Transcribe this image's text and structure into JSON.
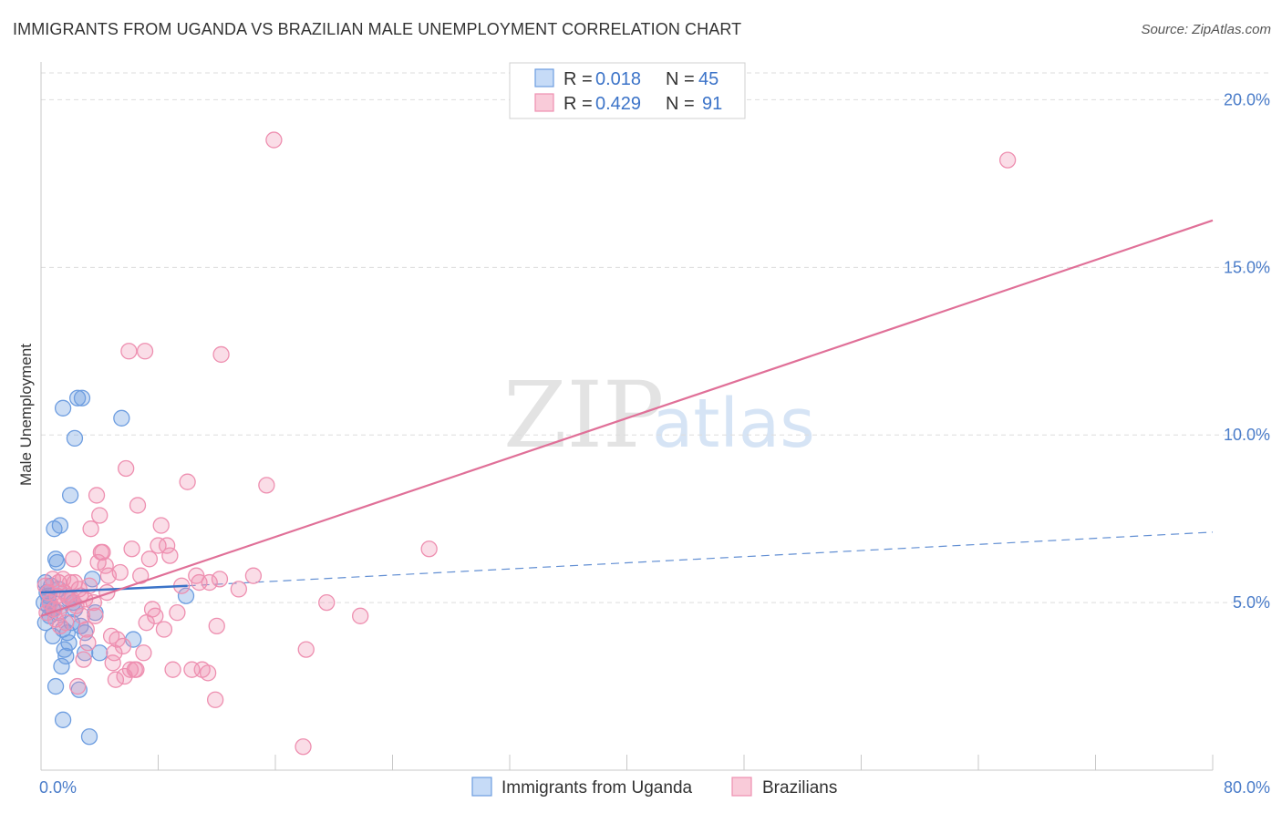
{
  "title": "IMMIGRANTS FROM UGANDA VS BRAZILIAN MALE UNEMPLOYMENT CORRELATION CHART",
  "source": "Source: ZipAtlas.com",
  "watermark": {
    "zip": "ZIP",
    "atlas": "atlas"
  },
  "colors": {
    "blue": "#6d9de0",
    "pink": "#ee8fb0",
    "blue_line": "#3b73c8",
    "pink_line": "#e07098"
  },
  "legend": {
    "r_label": "R =",
    "n_label": "N =",
    "rows": [
      {
        "r": "0.018",
        "n": "45"
      },
      {
        "r": "0.429",
        "n": "91"
      }
    ]
  },
  "chart_data": {
    "type": "scatter",
    "title": "IMMIGRANTS FROM UGANDA VS BRAZILIAN MALE UNEMPLOYMENT CORRELATION CHART",
    "xlabel": "",
    "ylabel": "Male Unemployment",
    "xlim": [
      0,
      80
    ],
    "ylim": [
      0,
      20.8
    ],
    "x_tick_labels": [
      "0.0%",
      "80.0%"
    ],
    "y_ticks": [
      5,
      10,
      15,
      20
    ],
    "y_tick_labels": [
      "5.0%",
      "10.0%",
      "15.0%",
      "20.0%"
    ],
    "grid": true,
    "legend_position": "top-center",
    "series": [
      {
        "name": "Immigrants from Uganda",
        "trend": {
          "x": [
            0,
            10
          ],
          "y": [
            5.3,
            5.5
          ],
          "extended_to": [
            80,
            7.1
          ]
        },
        "points": [
          [
            0.3,
            5.6
          ],
          [
            0.4,
            5.3
          ],
          [
            0.5,
            4.9
          ],
          [
            0.6,
            4.6
          ],
          [
            0.3,
            4.4
          ],
          [
            0.8,
            4.0
          ],
          [
            0.9,
            7.2
          ],
          [
            1.0,
            6.3
          ],
          [
            1.1,
            6.2
          ],
          [
            1.3,
            7.3
          ],
          [
            0.6,
            5.0
          ],
          [
            0.5,
            5.2
          ],
          [
            1.2,
            4.7
          ],
          [
            1.5,
            4.2
          ],
          [
            1.6,
            3.6
          ],
          [
            1.8,
            4.1
          ],
          [
            1.9,
            3.8
          ],
          [
            1.7,
            3.4
          ],
          [
            2.1,
            4.4
          ],
          [
            2.3,
            4.8
          ],
          [
            2.2,
            5.0
          ],
          [
            1.4,
            3.1
          ],
          [
            2.0,
            8.2
          ],
          [
            1.5,
            10.8
          ],
          [
            2.3,
            9.9
          ],
          [
            2.5,
            11.1
          ],
          [
            2.8,
            11.1
          ],
          [
            1.0,
            2.5
          ],
          [
            1.5,
            1.5
          ],
          [
            2.6,
            2.4
          ],
          [
            3.0,
            3.5
          ],
          [
            3.5,
            5.7
          ],
          [
            3.7,
            4.7
          ],
          [
            4.0,
            3.5
          ],
          [
            3.3,
            1.0
          ],
          [
            5.5,
            10.5
          ],
          [
            6.3,
            3.9
          ],
          [
            9.9,
            5.2
          ],
          [
            3.0,
            4.1
          ],
          [
            1.2,
            5.4
          ],
          [
            0.8,
            4.8
          ],
          [
            0.2,
            5.0
          ],
          [
            0.7,
            5.5
          ],
          [
            2.7,
            4.3
          ],
          [
            1.9,
            5.1
          ]
        ]
      },
      {
        "name": "Brazilians",
        "trend": {
          "x": [
            0,
            80
          ],
          "y": [
            4.6,
            16.4
          ]
        },
        "points": [
          [
            0.3,
            5.5
          ],
          [
            0.6,
            5.0
          ],
          [
            0.9,
            4.8
          ],
          [
            1.2,
            5.6
          ],
          [
            1.5,
            5.7
          ],
          [
            1.8,
            5.2
          ],
          [
            2.0,
            5.6
          ],
          [
            2.2,
            6.3
          ],
          [
            2.4,
            4.9
          ],
          [
            2.6,
            5.4
          ],
          [
            2.8,
            4.6
          ],
          [
            3.0,
            5.1
          ],
          [
            3.2,
            3.8
          ],
          [
            3.4,
            7.2
          ],
          [
            3.6,
            5.0
          ],
          [
            3.8,
            8.2
          ],
          [
            4.0,
            7.6
          ],
          [
            4.2,
            6.5
          ],
          [
            4.4,
            6.1
          ],
          [
            4.6,
            5.8
          ],
          [
            4.8,
            4.0
          ],
          [
            5.0,
            3.5
          ],
          [
            5.2,
            3.9
          ],
          [
            5.4,
            5.9
          ],
          [
            5.6,
            3.7
          ],
          [
            5.8,
            9.0
          ],
          [
            6.0,
            12.5
          ],
          [
            6.2,
            6.6
          ],
          [
            6.4,
            3.0
          ],
          [
            6.6,
            7.9
          ],
          [
            6.8,
            5.8
          ],
          [
            7.0,
            3.5
          ],
          [
            7.2,
            4.4
          ],
          [
            7.4,
            6.3
          ],
          [
            7.6,
            4.8
          ],
          [
            7.8,
            4.6
          ],
          [
            8.0,
            6.7
          ],
          [
            8.2,
            7.3
          ],
          [
            8.4,
            4.2
          ],
          [
            8.6,
            6.7
          ],
          [
            8.8,
            6.4
          ],
          [
            9.0,
            3.0
          ],
          [
            9.3,
            4.7
          ],
          [
            9.6,
            5.5
          ],
          [
            10.0,
            8.6
          ],
          [
            10.3,
            3.0
          ],
          [
            10.6,
            5.8
          ],
          [
            10.8,
            5.6
          ],
          [
            11.0,
            3.0
          ],
          [
            11.5,
            5.6
          ],
          [
            12.0,
            4.3
          ],
          [
            12.2,
            5.7
          ],
          [
            12.3,
            12.4
          ],
          [
            13.5,
            5.4
          ],
          [
            14.5,
            5.8
          ],
          [
            15.4,
            8.5
          ],
          [
            15.9,
            18.8
          ],
          [
            17.9,
            0.7
          ],
          [
            18.1,
            3.6
          ],
          [
            19.5,
            5.0
          ],
          [
            21.8,
            4.6
          ],
          [
            26.5,
            6.6
          ],
          [
            66.0,
            18.2
          ],
          [
            1.0,
            4.5
          ],
          [
            1.4,
            4.9
          ],
          [
            2.5,
            2.5
          ],
          [
            3.3,
            5.5
          ],
          [
            4.1,
            6.5
          ],
          [
            4.9,
            3.2
          ],
          [
            5.1,
            2.7
          ],
          [
            5.7,
            2.8
          ],
          [
            6.1,
            3.0
          ],
          [
            6.5,
            3.0
          ],
          [
            7.1,
            12.5
          ],
          [
            11.4,
            2.9
          ],
          [
            11.9,
            2.1
          ],
          [
            2.9,
            3.3
          ],
          [
            3.9,
            6.2
          ],
          [
            0.5,
            5.3
          ],
          [
            1.1,
            5.2
          ],
          [
            1.7,
            4.4
          ],
          [
            2.1,
            5.1
          ],
          [
            0.8,
            5.7
          ],
          [
            1.6,
            5.3
          ],
          [
            3.1,
            4.2
          ],
          [
            4.5,
            5.3
          ],
          [
            0.4,
            4.7
          ],
          [
            2.7,
            5.2
          ],
          [
            1.3,
            4.3
          ],
          [
            2.3,
            5.6
          ],
          [
            3.7,
            4.6
          ]
        ]
      }
    ]
  },
  "bottom_legend": [
    "Immigrants from Uganda",
    "Brazilians"
  ]
}
